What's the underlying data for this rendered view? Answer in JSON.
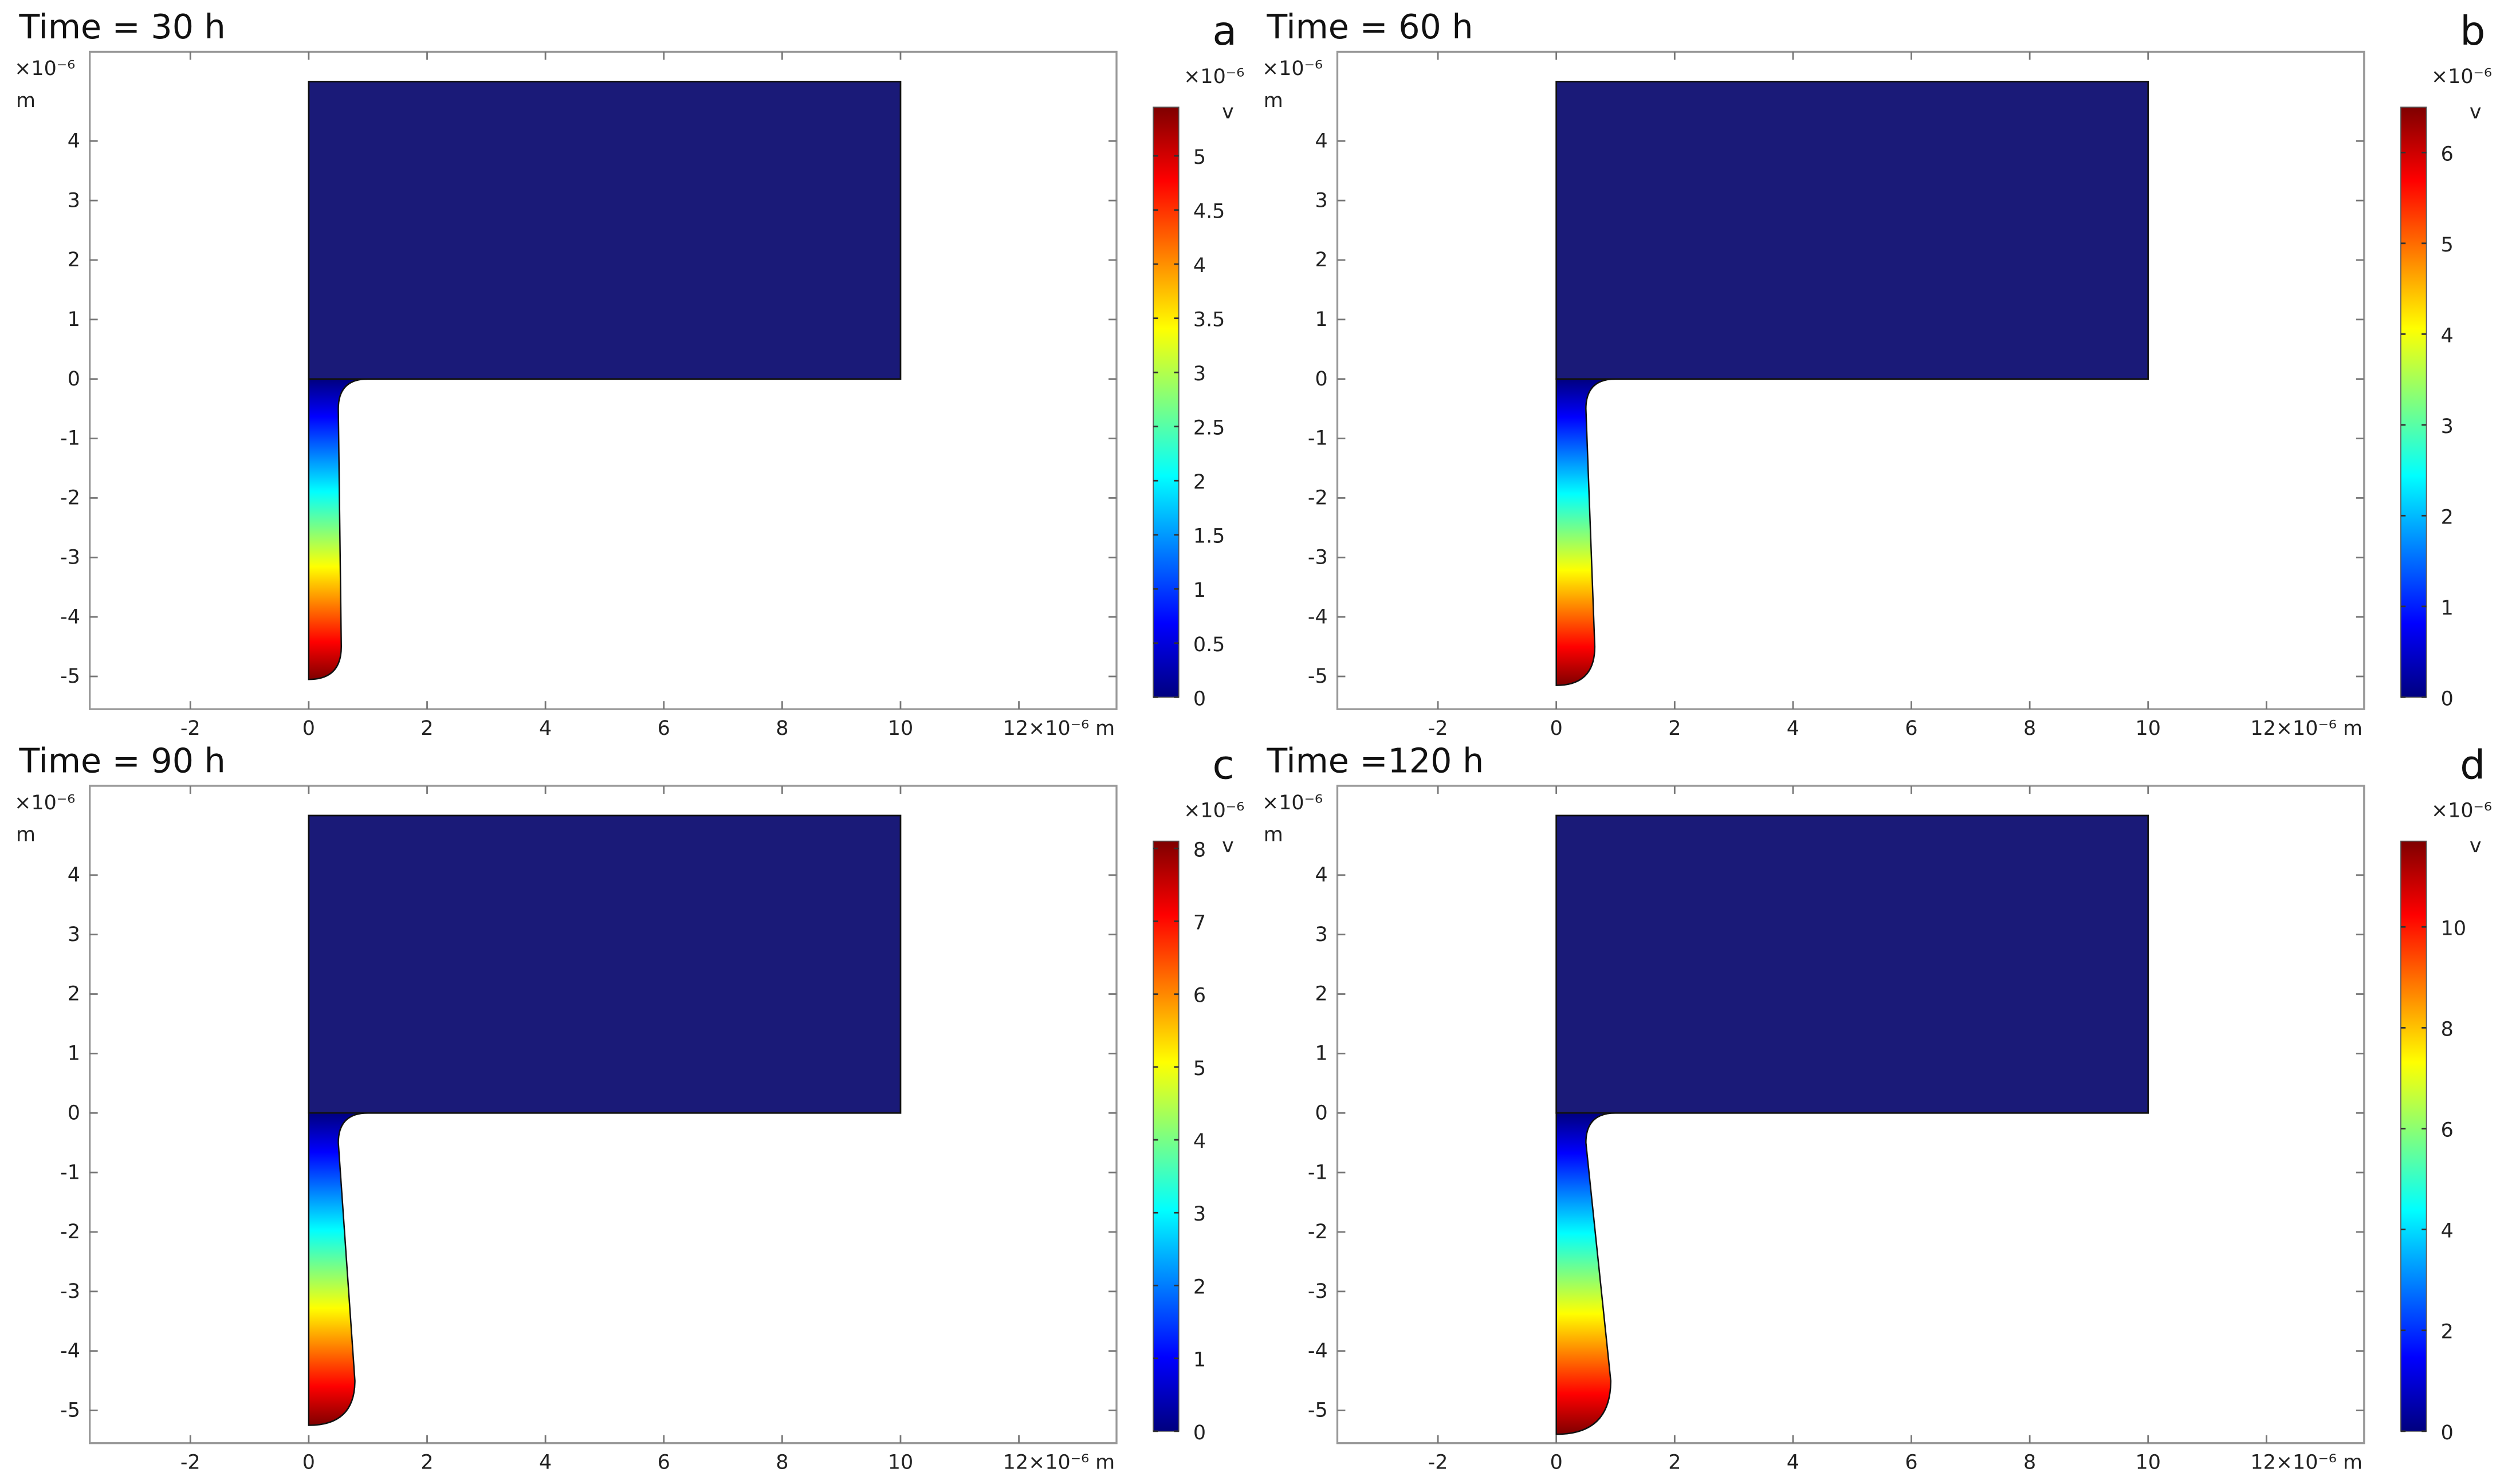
{
  "colors": {
    "domain": "#1a1a78",
    "frame": "#999999",
    "jet": [
      "#00007f",
      "#0000ff",
      "#007fff",
      "#00ffff",
      "#7fff7f",
      "#ffff00",
      "#ff7f00",
      "#ff0000",
      "#7f0000"
    ]
  },
  "chart_data": [
    {
      "type": "heatmap",
      "panel_label": "a",
      "title": "Time = 30 h",
      "xunit": "12×10⁻⁶ m",
      "yunit_exp": "×10⁻⁶",
      "yunit": "m",
      "xticks": [
        -2,
        0,
        2,
        4,
        6,
        8,
        10
      ],
      "yticks": [
        -5,
        -4,
        -3,
        -2,
        -1,
        0,
        1,
        2,
        3,
        4
      ],
      "xlim": [
        -3.7,
        13.65
      ],
      "ylim": [
        -5.55,
        5.5
      ],
      "colorbar": {
        "exp": "×10⁻⁶",
        "unit": "v",
        "ticks": [
          "0",
          "0.5",
          "1",
          "1.5",
          "2",
          "2.5",
          "3",
          "3.5",
          "4",
          "4.5",
          "5"
        ],
        "range": [
          0,
          5.45
        ]
      },
      "finger": {
        "width": 0.55,
        "depth": 5.05
      }
    },
    {
      "type": "heatmap",
      "panel_label": "b",
      "title": "Time = 60  h",
      "xunit": "12×10⁻⁶ m",
      "yunit_exp": "×10⁻⁶",
      "yunit": "m",
      "xticks": [
        -2,
        0,
        2,
        4,
        6,
        8,
        10
      ],
      "yticks": [
        -5,
        -4,
        -3,
        -2,
        -1,
        0,
        1,
        2,
        3,
        4
      ],
      "xlim": [
        -3.7,
        13.65
      ],
      "ylim": [
        -5.55,
        5.5
      ],
      "colorbar": {
        "exp": "×10⁻⁶",
        "unit": "v",
        "ticks": [
          "0",
          "1",
          "2",
          "3",
          "4",
          "5",
          "6"
        ],
        "range": [
          0,
          6.5
        ]
      },
      "finger": {
        "width": 0.65,
        "depth": 5.15
      }
    },
    {
      "type": "heatmap",
      "panel_label": "c",
      "title": "Time = 90  h",
      "xunit": "12×10⁻⁶ m",
      "yunit_exp": "×10⁻⁶",
      "yunit": "m",
      "xticks": [
        -2,
        0,
        2,
        4,
        6,
        8,
        10
      ],
      "yticks": [
        -5,
        -4,
        -3,
        -2,
        -1,
        0,
        1,
        2,
        3,
        4
      ],
      "xlim": [
        -3.7,
        13.65
      ],
      "ylim": [
        -5.55,
        5.5
      ],
      "colorbar": {
        "exp": "×10⁻⁶",
        "unit": "v",
        "ticks": [
          "0",
          "1",
          "2",
          "3",
          "4",
          "5",
          "6",
          "7",
          "8"
        ],
        "range": [
          0,
          8.1
        ]
      },
      "finger": {
        "width": 0.78,
        "depth": 5.25
      }
    },
    {
      "type": "heatmap",
      "panel_label": "d",
      "title": "Time =120 h",
      "xunit": "12×10⁻⁶ m",
      "yunit_exp": "×10⁻⁶",
      "yunit": "m",
      "xticks": [
        -2,
        0,
        2,
        4,
        6,
        8,
        10
      ],
      "yticks": [
        -5,
        -4,
        -3,
        -2,
        -1,
        0,
        1,
        2,
        3,
        4
      ],
      "xlim": [
        -3.7,
        13.65
      ],
      "ylim": [
        -5.55,
        5.5
      ],
      "colorbar": {
        "exp": "×10⁻⁶",
        "unit": "v",
        "ticks": [
          "0",
          "2",
          "4",
          "6",
          "8",
          "10"
        ],
        "range": [
          0,
          11.7
        ]
      },
      "finger": {
        "width": 0.92,
        "depth": 5.4
      }
    }
  ]
}
